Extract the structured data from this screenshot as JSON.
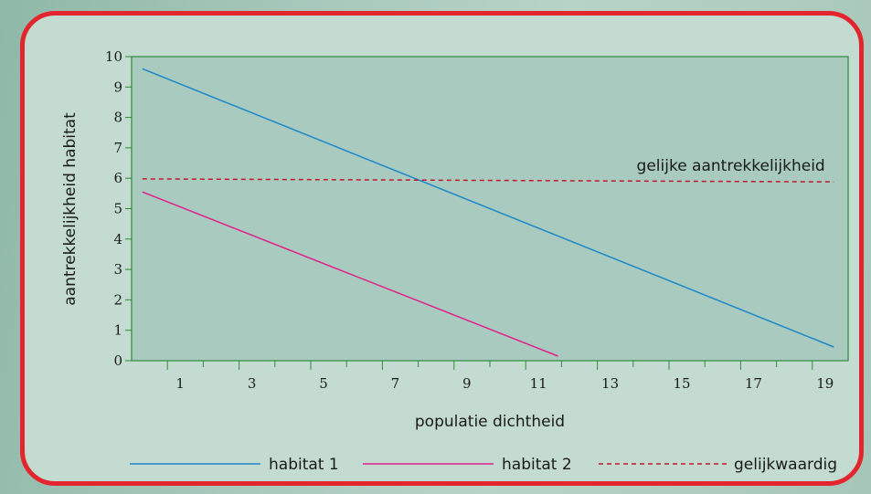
{
  "chart_data": {
    "type": "line",
    "title": "",
    "xlabel": "populatie dichtheid",
    "ylabel": "aantrekkelijkheid habitat",
    "xlim": [
      0,
      20
    ],
    "ylim": [
      0,
      10
    ],
    "x_ticks": [
      1,
      3,
      5,
      7,
      9,
      11,
      13,
      15,
      17,
      19
    ],
    "y_ticks": [
      0,
      1,
      2,
      3,
      4,
      5,
      6,
      7,
      8,
      9,
      10
    ],
    "x_tick_labels": [
      "1",
      "3",
      "5",
      "7",
      "9",
      "11",
      "13",
      "15",
      "17",
      "19"
    ],
    "y_tick_labels": [
      "0",
      "1",
      "2",
      "3",
      "4",
      "5",
      "6",
      "7",
      "8",
      "9",
      "10"
    ],
    "grid": false,
    "legend_position": "bottom",
    "series": [
      {
        "name": "habitat 1",
        "color": "#1e88c8",
        "dash": "solid",
        "x": [
          0.3,
          19.6
        ],
        "y": [
          9.6,
          0.45
        ]
      },
      {
        "name": "habitat 2",
        "color": "#e0208a",
        "dash": "solid",
        "x": [
          0.3,
          11.9
        ],
        "y": [
          5.55,
          0.15
        ]
      },
      {
        "name": "gelijkwaardig",
        "color": "#c0192e",
        "dash": "dashed",
        "x": [
          0.3,
          19.6
        ],
        "y": [
          5.98,
          5.88
        ]
      }
    ],
    "annotations": [
      {
        "text": "gelijke aantrekkelijkheid",
        "x": 19.1,
        "y": 6.3
      }
    ]
  },
  "colors": {
    "plot_background": "#a8cabf",
    "plot_border": "#2f8a3a",
    "panel_border": "#e3262d",
    "panel_background": "#c3dbd1"
  }
}
